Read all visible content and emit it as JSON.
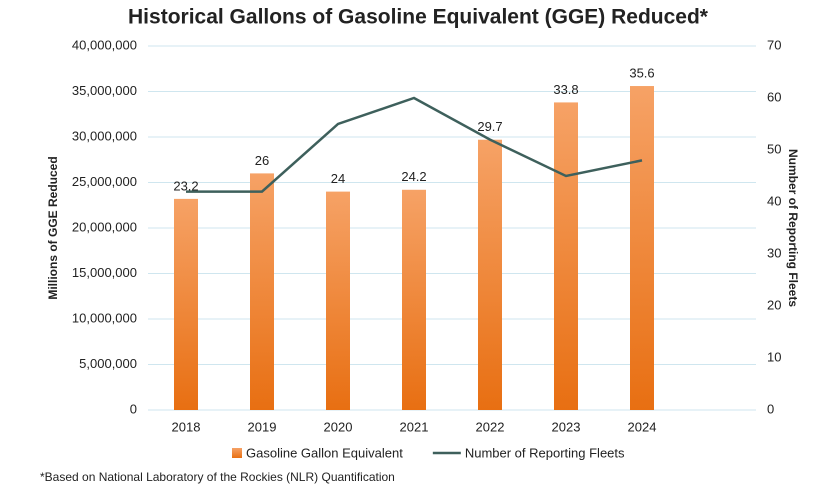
{
  "chart_data": {
    "type": "bar",
    "title": "Historical Gallons of Gasoline Equivalent (GGE) Reduced*",
    "ylabel": "Millions of GGE Reduced",
    "y2label": "Number of Reporting Fleets",
    "categories": [
      "2018",
      "2019",
      "2020",
      "2021",
      "2022",
      "2023",
      "2024"
    ],
    "series": [
      {
        "name": "Gasoline Gallon Equivalent",
        "type": "bar",
        "color": "#ef7f2a",
        "values": [
          23200000,
          26000000,
          24000000,
          24200000,
          29700000,
          33800000,
          35600000
        ],
        "value_labels": [
          "23.2",
          "26",
          "24",
          "24.2",
          "29.7",
          "33.8",
          "35.6"
        ]
      },
      {
        "name": "Number of Reporting Fleets",
        "type": "line",
        "color": "#3e605c",
        "axis": "y2",
        "values": [
          42,
          42,
          55,
          60,
          52,
          45,
          48
        ]
      }
    ],
    "ylim": [
      0,
      40000000
    ],
    "yticks": [
      0,
      {
        "value": 5000000,
        "label": "5,000,000"
      },
      {
        "value": 10000000,
        "label": "10,000,000"
      },
      {
        "value": 15000000,
        "label": "15,000,000"
      },
      {
        "value": 20000000,
        "label": "20,000,000"
      },
      {
        "value": 25000000,
        "label": "25,000,000"
      },
      {
        "value": 30000000,
        "label": "30,000,000"
      },
      {
        "value": 35000000,
        "label": "35,000,000"
      },
      {
        "value": 40000000,
        "label": "40,000,000"
      }
    ],
    "y2lim": [
      0,
      70
    ],
    "y2ticks": [
      0,
      10,
      20,
      30,
      40,
      50,
      60,
      70
    ],
    "grid": true,
    "legend": "bottom",
    "note": "*Based on National Laboratory of the Rockies (NLR) Quantification"
  }
}
